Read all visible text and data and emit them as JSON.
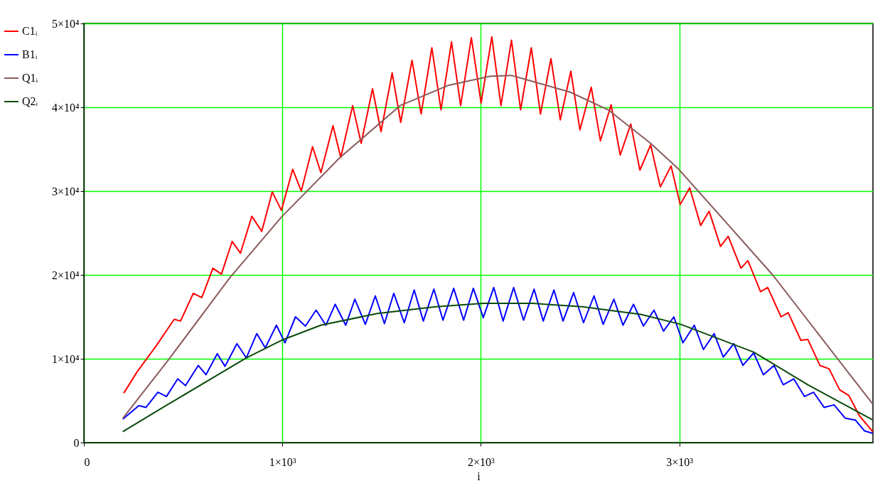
{
  "chart_data": {
    "type": "line",
    "xlabel": "i",
    "xlim": [
      0,
      3975
    ],
    "ylim": [
      0,
      50000
    ],
    "xticks": [
      0,
      {
        "value": 1000,
        "label": "1×10³"
      },
      {
        "value": 2000,
        "label": "2×10³"
      },
      {
        "value": 3000,
        "label": "3×10³"
      }
    ],
    "yticks": [
      0,
      {
        "value": 10000,
        "label": "1×10⁴"
      },
      {
        "value": 20000,
        "label": "2×10⁴"
      },
      {
        "value": 30000,
        "label": "3×10⁴"
      },
      {
        "value": 40000,
        "label": "4×10⁴"
      },
      {
        "value": 50000,
        "label": "5×10⁴"
      }
    ],
    "grid": true,
    "legend": "left",
    "marker": "none",
    "line_style": "solid",
    "series": [
      {
        "name": "C1ᵢ",
        "color": "#ff0000",
        "x": [
          201,
          267,
          366,
          455,
          487,
          551,
          594,
          650,
          693,
          747,
          789,
          846,
          896,
          949,
          995,
          1052,
          1095,
          1152,
          1194,
          1255,
          1294,
          1354,
          1397,
          1454,
          1497,
          1553,
          1596,
          1653,
          1699,
          1753,
          1799,
          1852,
          1898,
          1952,
          2001,
          2055,
          2101,
          2154,
          2200,
          2254,
          2300,
          2353,
          2400,
          2453,
          2499,
          2556,
          2602,
          2656,
          2702,
          2755,
          2801,
          2855,
          2904,
          2958,
          3004,
          3052,
          3107,
          3150,
          3207,
          3246,
          3310,
          3345,
          3409,
          3445,
          3512,
          3548,
          3612,
          3647,
          3708,
          3754,
          3807,
          3854,
          3907,
          3974
        ],
        "values": [
          5900,
          8400,
          11600,
          14700,
          14500,
          17800,
          17300,
          20800,
          20100,
          24000,
          22600,
          27000,
          25200,
          29900,
          27700,
          32600,
          30000,
          35300,
          32200,
          37800,
          34000,
          40200,
          35700,
          42200,
          37100,
          44100,
          38200,
          45600,
          39200,
          47100,
          39700,
          47800,
          40200,
          48300,
          40500,
          48400,
          40200,
          48000,
          39700,
          47100,
          39200,
          45800,
          38500,
          44300,
          37300,
          42400,
          36000,
          40300,
          34300,
          38000,
          32500,
          35500,
          30500,
          33000,
          28400,
          30400,
          25900,
          27600,
          23400,
          24600,
          20800,
          21700,
          18000,
          18500,
          15000,
          15500,
          12200,
          12300,
          9200,
          8800,
          6300,
          5600,
          3200,
          1300
        ]
      },
      {
        "name": "B1ᵢ",
        "color": "#0000ff",
        "x": [
          196,
          277,
          313,
          373,
          416,
          473,
          512,
          576,
          615,
          672,
          711,
          771,
          818,
          871,
          914,
          970,
          1013,
          1066,
          1116,
          1170,
          1219,
          1266,
          1319,
          1365,
          1418,
          1468,
          1514,
          1561,
          1614,
          1664,
          1710,
          1763,
          1809,
          1863,
          1913,
          1962,
          2012,
          2065,
          2112,
          2165,
          2215,
          2268,
          2314,
          2368,
          2414,
          2467,
          2517,
          2570,
          2616,
          2670,
          2716,
          2769,
          2819,
          2872,
          2920,
          2972,
          3018,
          3075,
          3121,
          3175,
          3221,
          3274,
          3320,
          3374,
          3423,
          3477,
          3523,
          3576,
          3630,
          3676,
          3729,
          3779,
          3836,
          3886,
          3932,
          3974
        ],
        "values": [
          2800,
          4400,
          4200,
          6000,
          5500,
          7600,
          6800,
          9200,
          8100,
          10600,
          9100,
          11800,
          10100,
          13000,
          11300,
          14000,
          11900,
          15000,
          13900,
          15800,
          14000,
          16500,
          14000,
          17100,
          14100,
          17500,
          14200,
          17800,
          14300,
          18200,
          14500,
          18300,
          14600,
          18400,
          14600,
          18400,
          14900,
          18500,
          14500,
          18500,
          14600,
          18300,
          14500,
          18200,
          14500,
          17900,
          14300,
          17500,
          14100,
          17100,
          14000,
          16500,
          13900,
          15800,
          13300,
          15000,
          11900,
          14000,
          11100,
          13000,
          10200,
          11800,
          9200,
          10700,
          8100,
          9200,
          6900,
          7600,
          5500,
          6000,
          4200,
          4500,
          2900,
          2700,
          1400,
          1100
        ]
      },
      {
        "name": "Q1ᵢ",
        "color": "#8b5a5a",
        "x": [
          196,
          427,
          736,
          995,
          1290,
          1593,
          1834,
          2048,
          2154,
          2450,
          2641,
          2855,
          2997,
          3470,
          3800,
          3974
        ],
        "values": [
          2900,
          9900,
          19700,
          26900,
          34000,
          40200,
          42600,
          43700,
          43800,
          41800,
          39700,
          35700,
          32600,
          20000,
          9900,
          4600
        ]
      },
      {
        "name": "Q2ᵢ",
        "color": "#0a4a0a",
        "x": [
          196,
          427,
          818,
          995,
          1194,
          1479,
          1774,
          2012,
          2261,
          2510,
          2805,
          3008,
          3374,
          3647,
          3974
        ],
        "values": [
          1300,
          4600,
          10100,
          12200,
          14000,
          15400,
          16200,
          16600,
          16600,
          16200,
          15300,
          14100,
          10800,
          6900,
          2700
        ]
      }
    ]
  }
}
